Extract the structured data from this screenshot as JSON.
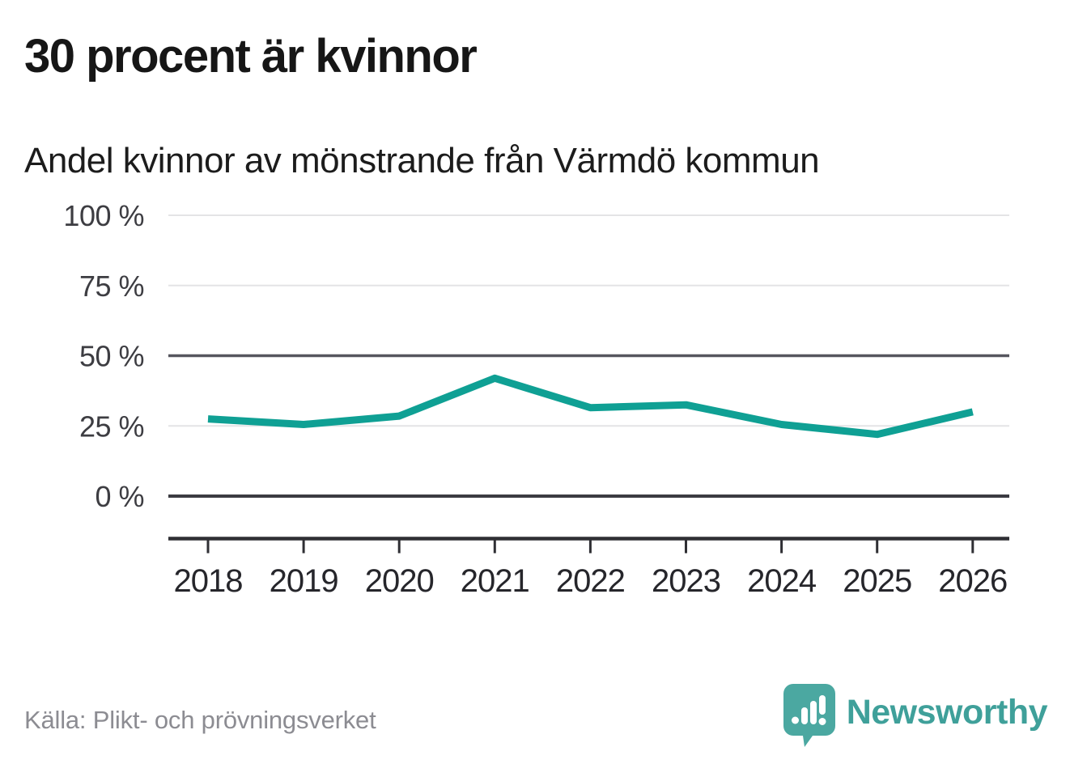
{
  "title": "30 procent är kvinnor",
  "subtitle": "Andel kvinnor av mönstrande från Värmdö kommun",
  "source": "Källa: Plikt- och prövningsverket",
  "brand": {
    "name": "Newsworthy",
    "icon": "speech-bubble-bar-chart-icon",
    "bubble_color": "#4ba8a1",
    "wordmark_color": "#3fa09a"
  },
  "colors": {
    "line": "#0fa094",
    "grid_light": "#e4e4e6",
    "grid_mid": "#56565e",
    "grid_zero": "#3b3b41",
    "axis": "#2f2f34",
    "tick": "#2f2f34",
    "ytick_label": "#3d3d42",
    "xtick_label": "#26262b"
  },
  "chart_data": {
    "type": "line",
    "title": "30 procent är kvinnor",
    "subtitle": "Andel kvinnor av mönstrande från Värmdö kommun",
    "categories": [
      "2018",
      "2019",
      "2020",
      "2021",
      "2022",
      "2023",
      "2024",
      "2025",
      "2026"
    ],
    "series": [
      {
        "name": "Andel kvinnor av mönstrande, Värmdö kommun",
        "values": [
          27.5,
          25.5,
          28.5,
          42,
          31.5,
          32.5,
          25.5,
          22,
          30
        ]
      }
    ],
    "unit": "%",
    "ylim": [
      0,
      100
    ],
    "yticks": [
      0,
      25,
      50,
      75,
      100
    ],
    "ytick_labels": [
      "0 %",
      "25 %",
      "50 %",
      "75 %",
      "100 %"
    ],
    "grid": true,
    "legend_position": "none",
    "highlighted_value": "30"
  }
}
